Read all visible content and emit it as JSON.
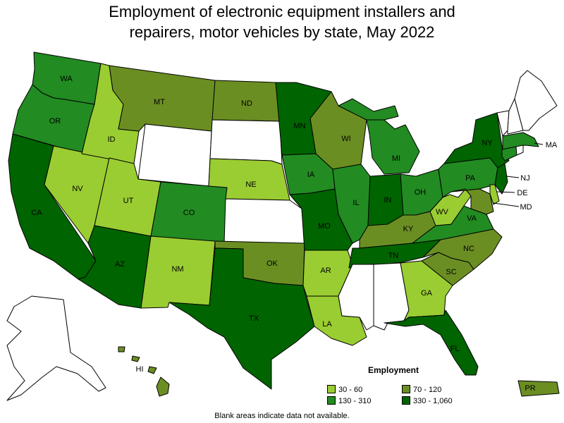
{
  "title_line1": "Employment of electronic equipment installers and",
  "title_line2": "repairers, motor vehicles by state, May 2022",
  "legend": {
    "title": "Employment",
    "items": [
      {
        "label": "30 - 60",
        "color": "#9acd32"
      },
      {
        "label": "70 - 120",
        "color": "#6b8e23"
      },
      {
        "label": "130 - 310",
        "color": "#228b22"
      },
      {
        "label": "330 - 1,060",
        "color": "#006400"
      }
    ]
  },
  "footnote": "Blank areas indicate data not available.",
  "colors": {
    "c1": "#9acd32",
    "c2": "#6b8e23",
    "c3": "#228b22",
    "c4": "#006400",
    "none": "#ffffff"
  },
  "states": {
    "WA": {
      "label": "WA",
      "class": "c3"
    },
    "OR": {
      "label": "OR",
      "class": "c3"
    },
    "CA": {
      "label": "CA",
      "class": "c4"
    },
    "NV": {
      "label": "NV",
      "class": "c1"
    },
    "ID": {
      "label": "ID",
      "class": "c1"
    },
    "MT": {
      "label": "MT",
      "class": "c2"
    },
    "WY": {
      "label": "",
      "class": "none"
    },
    "UT": {
      "label": "UT",
      "class": "c1"
    },
    "AZ": {
      "label": "AZ",
      "class": "c4"
    },
    "CO": {
      "label": "CO",
      "class": "c3"
    },
    "NM": {
      "label": "NM",
      "class": "c1"
    },
    "ND": {
      "label": "ND",
      "class": "c2"
    },
    "SD": {
      "label": "",
      "class": "none"
    },
    "NE": {
      "label": "NE",
      "class": "c1"
    },
    "KS": {
      "label": "",
      "class": "none"
    },
    "OK": {
      "label": "OK",
      "class": "c2"
    },
    "TX": {
      "label": "TX",
      "class": "c4"
    },
    "MN": {
      "label": "MN",
      "class": "c4"
    },
    "IA": {
      "label": "IA",
      "class": "c3"
    },
    "MO": {
      "label": "MO",
      "class": "c4"
    },
    "AR": {
      "label": "AR",
      "class": "c1"
    },
    "LA": {
      "label": "LA",
      "class": "c1"
    },
    "WI": {
      "label": "WI",
      "class": "c2"
    },
    "IL": {
      "label": "IL",
      "class": "c3"
    },
    "MI": {
      "label": "MI",
      "class": "c3"
    },
    "IN": {
      "label": "IN",
      "class": "c4"
    },
    "OH": {
      "label": "OH",
      "class": "c3"
    },
    "KY": {
      "label": "KY",
      "class": "c2"
    },
    "TN": {
      "label": "TN",
      "class": "c4"
    },
    "MS": {
      "label": "",
      "class": "none"
    },
    "AL": {
      "label": "",
      "class": "none"
    },
    "GA": {
      "label": "GA",
      "class": "c1"
    },
    "FL": {
      "label": "FL",
      "class": "c4"
    },
    "SC": {
      "label": "SC",
      "class": "c2"
    },
    "NC": {
      "label": "NC",
      "class": "c2"
    },
    "VA": {
      "label": "VA",
      "class": "c3"
    },
    "WV": {
      "label": "WV",
      "class": "c1"
    },
    "PA": {
      "label": "PA",
      "class": "c3"
    },
    "NY": {
      "label": "NY",
      "class": "c4"
    },
    "NJ": {
      "label": "NJ",
      "class": "c4"
    },
    "DE": {
      "label": "DE",
      "class": "c1"
    },
    "MD": {
      "label": "MD",
      "class": "c2"
    },
    "MA": {
      "label": "MA",
      "class": "c3"
    },
    "CT": {
      "label": "",
      "class": "c3"
    },
    "RI": {
      "label": "",
      "class": "none"
    },
    "VT": {
      "label": "",
      "class": "none"
    },
    "NH": {
      "label": "",
      "class": "none"
    },
    "ME": {
      "label": "",
      "class": "none"
    },
    "AK": {
      "label": "",
      "class": "none"
    },
    "HI": {
      "label": "HI",
      "class": "c2"
    },
    "PR": {
      "label": "PR",
      "class": "c2"
    }
  }
}
